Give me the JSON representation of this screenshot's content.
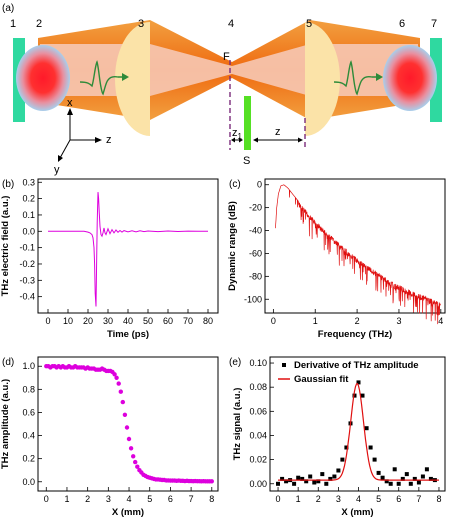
{
  "panel_labels": {
    "a": "(a)",
    "b": "(b)",
    "c": "(c)",
    "d": "(d)",
    "e": "(e)"
  },
  "setup": {
    "component_numbers": [
      "1",
      "2",
      "3",
      "4",
      "5",
      "6",
      "7"
    ],
    "focus_label": "F",
    "sample_label": "S",
    "z1_label": "z",
    "z1_sub": "1",
    "z_label": "z",
    "axis_x": "x",
    "axis_y": "y",
    "axis_z": "z",
    "colors": {
      "mirror": "#2fd9a0",
      "sample": "#55e024",
      "lens": "#fbe3a8",
      "beam_outer": "#f08a1c",
      "beam_inner": "#f6c8b4",
      "emitter_core": "#ff1a2a",
      "emitter_edge": "#b8d8f0",
      "pulse": "#2e8b3a",
      "focus_line": "#7a2a7a"
    }
  },
  "chart_data": [
    {
      "panel": "b",
      "type": "line",
      "xlabel": "Time (ps)",
      "ylabel": "THz electric field (a.u.)",
      "xlim": [
        -5,
        85
      ],
      "ylim": [
        -0.5,
        0.32
      ],
      "xticks": [
        "0",
        "10",
        "20",
        "30",
        "40",
        "50",
        "60",
        "70",
        "80"
      ],
      "yticks": [
        "-0.4",
        "-0.3",
        "-0.2",
        "-0.1",
        "0.0",
        "0.1",
        "0.2",
        "0.3"
      ],
      "color": "#dd00dd",
      "series": [
        {
          "x": [
            0,
            5,
            10,
            15,
            18,
            20,
            21,
            22,
            22.5,
            23,
            23.3,
            23.6,
            24,
            24.3,
            24.6,
            25,
            25.3,
            25.6,
            26,
            26.5,
            27,
            27.5,
            28,
            28.5,
            29,
            30,
            31,
            32,
            33,
            34,
            35,
            36,
            37,
            38,
            40,
            42,
            44,
            46,
            48,
            50,
            55,
            60,
            65,
            70,
            75,
            80
          ],
          "y": [
            0.0,
            0.0,
            0.0,
            0.0,
            0.0,
            -0.005,
            -0.01,
            -0.02,
            -0.04,
            -0.1,
            -0.2,
            -0.38,
            -0.46,
            -0.2,
            0.05,
            0.24,
            0.2,
            0.12,
            0.03,
            -0.02,
            -0.03,
            -0.01,
            0.02,
            -0.01,
            -0.02,
            0.015,
            -0.015,
            0.01,
            -0.01,
            0.008,
            -0.006,
            0.005,
            -0.005,
            0.004,
            -0.004,
            0.003,
            -0.003,
            0.003,
            -0.002,
            0.002,
            -0.002,
            0.002,
            -0.001,
            0.001,
            0.0,
            0.0
          ]
        }
      ]
    },
    {
      "panel": "c",
      "type": "line",
      "xlabel": "Frequency (THz)",
      "ylabel": "Dynamic range (dB)",
      "xlim": [
        -0.2,
        4.1
      ],
      "ylim": [
        -112,
        5
      ],
      "xticks": [
        "0",
        "1",
        "2",
        "3",
        "4"
      ],
      "yticks": [
        "0",
        "-20",
        "-40",
        "-60",
        "-80",
        "-100"
      ],
      "color": "#e01010",
      "envelope": {
        "x": [
          0.05,
          0.08,
          0.12,
          0.18,
          0.25,
          0.35,
          0.5,
          0.7,
          1.0,
          1.3,
          1.6,
          2.0,
          2.4,
          2.8,
          3.2,
          3.6,
          4.0
        ],
        "y": [
          -38,
          -20,
          -8,
          -1,
          0,
          -3,
          -10,
          -19,
          -31,
          -42,
          -52,
          -64,
          -74,
          -84,
          -91,
          -97,
          -103
        ]
      }
    },
    {
      "panel": "d",
      "type": "scatter",
      "xlabel": "X (mm)",
      "ylabel": "THz amplitude (a.u.)",
      "xlim": [
        -0.4,
        8.3
      ],
      "ylim": [
        -0.08,
        1.08
      ],
      "xticks": [
        "0",
        "1",
        "2",
        "3",
        "4",
        "5",
        "6",
        "7",
        "8"
      ],
      "yticks": [
        "0.0",
        "0.2",
        "0.4",
        "0.6",
        "0.8",
        "1.0"
      ],
      "color": "#dd00dd",
      "series": [
        {
          "x": [
            0,
            0.1,
            0.2,
            0.3,
            0.4,
            0.5,
            0.6,
            0.7,
            0.8,
            0.9,
            1.0,
            1.1,
            1.2,
            1.3,
            1.4,
            1.5,
            1.6,
            1.7,
            1.8,
            1.9,
            2.0,
            2.1,
            2.2,
            2.3,
            2.4,
            2.5,
            2.6,
            2.7,
            2.8,
            2.9,
            3.0,
            3.1,
            3.2,
            3.3,
            3.4,
            3.5,
            3.6,
            3.7,
            3.8,
            3.9,
            4.0,
            4.1,
            4.2,
            4.3,
            4.4,
            4.5,
            4.6,
            4.7,
            4.8,
            4.9,
            5.0,
            5.1,
            5.2,
            5.3,
            5.4,
            5.5,
            5.6,
            5.7,
            5.8,
            5.9,
            6.0,
            6.1,
            6.2,
            6.3,
            6.4,
            6.5,
            6.6,
            6.7,
            6.8,
            6.9,
            7.0,
            7.1,
            7.2,
            7.3,
            7.4,
            7.5,
            7.6,
            7.7,
            7.8,
            7.9,
            8.0
          ],
          "y": [
            1.0,
            1.0,
            0.99,
            1.0,
            1.0,
            0.99,
            1.0,
            0.99,
            1.0,
            0.99,
            0.99,
            1.0,
            0.99,
            0.99,
            1.0,
            0.99,
            0.99,
            0.99,
            0.99,
            0.98,
            0.99,
            0.98,
            0.98,
            0.98,
            0.97,
            0.97,
            0.97,
            0.98,
            0.97,
            0.96,
            0.96,
            0.96,
            0.95,
            0.93,
            0.9,
            0.85,
            0.78,
            0.69,
            0.58,
            0.47,
            0.37,
            0.29,
            0.22,
            0.17,
            0.13,
            0.1,
            0.08,
            0.06,
            0.05,
            0.04,
            0.035,
            0.03,
            0.025,
            0.02,
            0.02,
            0.018,
            0.015,
            0.015,
            0.012,
            0.012,
            0.01,
            0.01,
            0.01,
            0.008,
            0.01,
            0.008,
            0.008,
            0.006,
            0.008,
            0.006,
            0.006,
            0.005,
            0.006,
            0.005,
            0.005,
            0.004,
            0.005,
            0.004,
            0.004,
            0.004,
            0.004
          ]
        }
      ]
    },
    {
      "panel": "e",
      "type": "scatter",
      "xlabel": "X (mm)",
      "ylabel": "THz signal (a.u.)",
      "xlim": [
        -0.4,
        8.3
      ],
      "ylim": [
        -0.006,
        0.105
      ],
      "xticks": [
        "0",
        "1",
        "2",
        "3",
        "4",
        "5",
        "6",
        "7",
        "8"
      ],
      "yticks": [
        "0.00",
        "0.02",
        "0.04",
        "0.06",
        "0.08",
        "0.10"
      ],
      "legend": {
        "position": "top-left",
        "entries": [
          "Derivative of THz amplitude",
          "Gaussian fit"
        ]
      },
      "series": [
        {
          "name": "Derivative of THz amplitude",
          "color": "#000000",
          "x": [
            0,
            0.2,
            0.4,
            0.6,
            0.8,
            1.0,
            1.2,
            1.4,
            1.6,
            1.8,
            2.0,
            2.2,
            2.4,
            2.6,
            2.8,
            3.0,
            3.2,
            3.4,
            3.6,
            3.8,
            4.0,
            4.2,
            4.4,
            4.6,
            4.8,
            5.0,
            5.2,
            5.4,
            5.6,
            5.8,
            6.0,
            6.2,
            6.4,
            6.6,
            6.8,
            7.0,
            7.2,
            7.4,
            7.6,
            7.8
          ],
          "y": [
            0.0,
            0.004,
            0.002,
            0.003,
            0.0,
            0.005,
            0.004,
            0.002,
            0.006,
            0.001,
            0.002,
            0.008,
            0.0,
            0.004,
            0.006,
            0.011,
            0.02,
            0.03,
            0.05,
            0.073,
            0.084,
            0.073,
            0.046,
            0.03,
            0.02,
            0.009,
            0.005,
            0.002,
            0.0,
            0.012,
            0.0,
            0.004,
            0.008,
            0.0,
            0.004,
            0.001,
            0.006,
            0.012,
            0.004,
            0.003
          ]
        },
        {
          "name": "Gaussian fit",
          "color": "#e01010",
          "fit": {
            "baseline": 0.003,
            "amplitude": 0.08,
            "center": 3.93,
            "sigma": 0.32
          }
        }
      ]
    }
  ]
}
